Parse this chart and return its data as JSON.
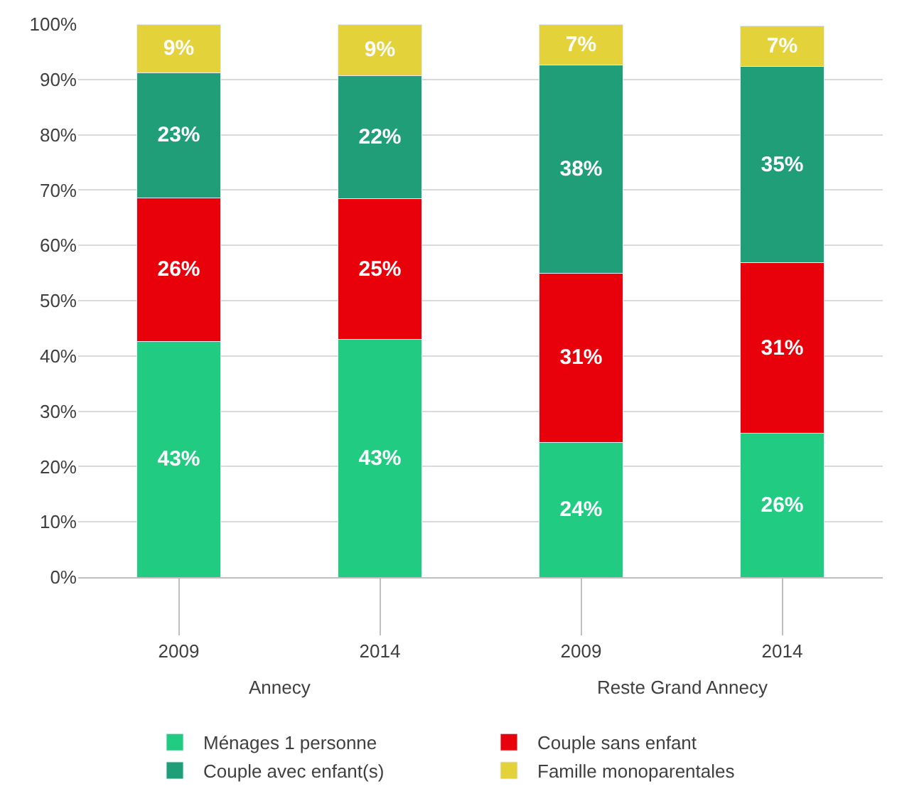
{
  "chart_data": {
    "type": "bar",
    "stacked": true,
    "categories": [
      "2009",
      "2014",
      "2009",
      "2014"
    ],
    "series": [
      {
        "name": "Ménages 1 personne",
        "color": "#21cc82",
        "values": [
          42.6,
          43,
          24.4,
          26
        ],
        "value_labels": [
          "43%",
          "43%",
          "24%",
          "26%"
        ]
      },
      {
        "name": "Couple sans enfant",
        "color": "#e8000b",
        "values": [
          26,
          25.4,
          30.6,
          30.9
        ],
        "value_labels": [
          "26%",
          "25%",
          "31%",
          "31%"
        ]
      },
      {
        "name": "Couple avec enfant(s)",
        "color": "#1f9e78",
        "values": [
          22.6,
          22.3,
          37.6,
          35.4
        ],
        "value_labels": [
          "23%",
          "22%",
          "38%",
          "35%"
        ]
      },
      {
        "name": "Famille monoparentales",
        "color": "#e3d23a",
        "values": [
          8.8,
          9.3,
          7.4,
          7.4
        ],
        "value_labels": [
          "9%",
          "9%",
          "7%",
          "7%"
        ]
      }
    ],
    "annotations": [
      "Annecy",
      "Reste Grand Annecy"
    ],
    "ylim": [
      0,
      100
    ],
    "yticks": [
      {
        "value": 0,
        "label": "0%"
      },
      {
        "value": 10,
        "label": "10%"
      },
      {
        "value": 20,
        "label": "20%"
      },
      {
        "value": 30,
        "label": "30%"
      },
      {
        "value": 40,
        "label": "40%"
      },
      {
        "value": 50,
        "label": "50%"
      },
      {
        "value": 60,
        "label": "60%"
      },
      {
        "value": 70,
        "label": "70%"
      },
      {
        "value": 80,
        "label": "80%"
      },
      {
        "value": 90,
        "label": "90%"
      },
      {
        "value": 100,
        "label": "100%"
      }
    ],
    "grid": "y",
    "legend": "bottom"
  }
}
